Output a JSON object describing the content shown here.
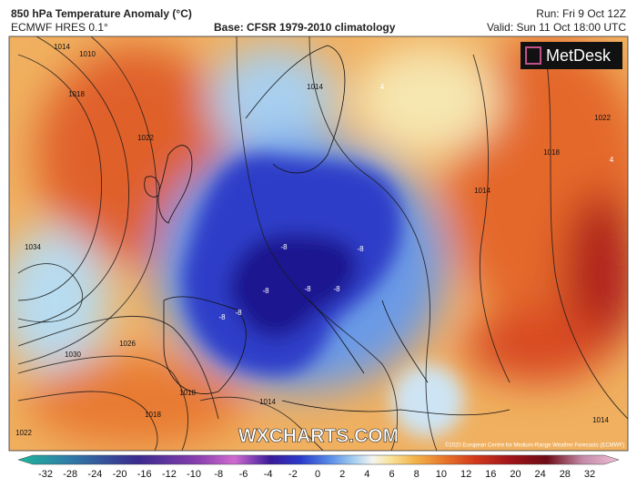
{
  "header": {
    "title": "850 hPa Temperature Anomaly (°C)",
    "model": "ECMWF HRES 0.1°",
    "base": "Base: CFSR 1979-2010 climatology",
    "run": "Run: Fri 9 Oct 12Z",
    "valid": "Valid: Sun 11 Oct 18:00 UTC"
  },
  "logo": "MetDesk",
  "watermark": "WXCHARTS.COM",
  "copyright": "©2020 European Centre for Medium-Range Weather Forecasts (ECMWF)",
  "isobar_labels": [
    "1014",
    "1010",
    "1018",
    "1022",
    "1034",
    "1030",
    "1026",
    "1018",
    "1022",
    "1014",
    "1014",
    "1018",
    "1014",
    "1022",
    "1014",
    "1018"
  ],
  "anomaly_labels": [
    "-8",
    "-8",
    "-8",
    "-8",
    "-8",
    "-8",
    "-8",
    "4",
    "4"
  ],
  "colorbar": {
    "ticks": [
      -32,
      -28,
      -24,
      -20,
      -16,
      -12,
      -10,
      -8,
      -6,
      -4,
      -2,
      0,
      2,
      4,
      6,
      8,
      10,
      12,
      16,
      20,
      24,
      28,
      32
    ]
  }
}
